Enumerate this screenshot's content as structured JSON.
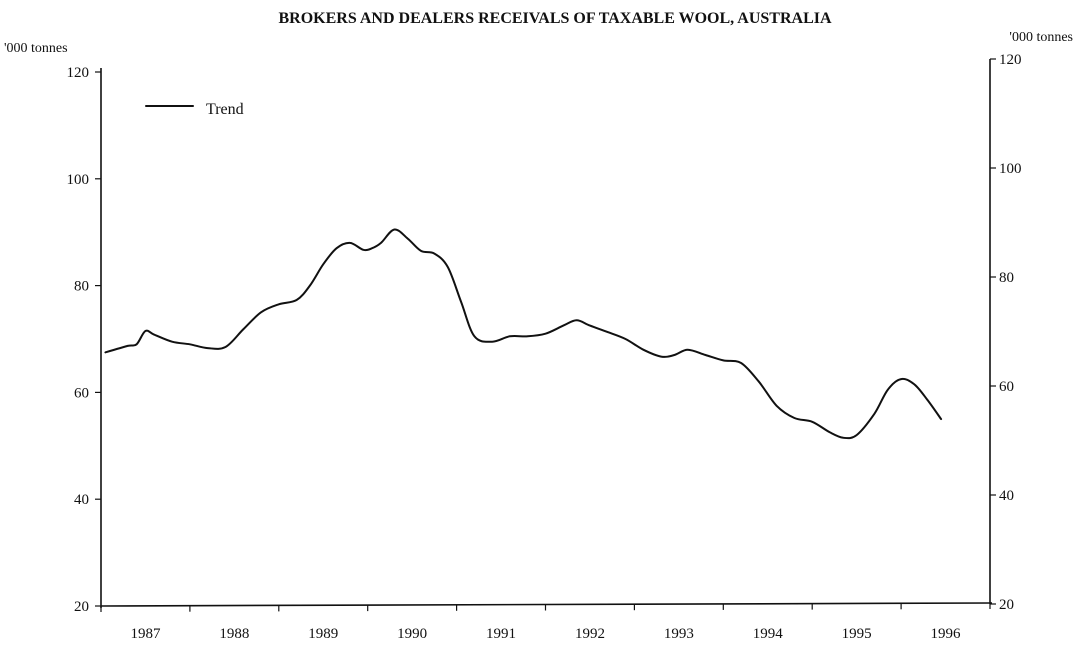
{
  "chart_data": {
    "type": "line",
    "title": "BROKERS AND DEALERS RECEIVALS OF TAXABLE WOOL, AUSTRALIA",
    "ylabel_left": "'000 tonnes",
    "ylabel_right": "'000 tonnes",
    "xlabel": "",
    "y_ticks": [
      20,
      40,
      60,
      80,
      100,
      120
    ],
    "ylim": [
      20,
      120
    ],
    "y_ticks_right": [
      20,
      40,
      60,
      80,
      100,
      120
    ],
    "x_tick_labels": [
      "1987",
      "1988",
      "1989",
      "1990",
      "1991",
      "1992",
      "1993",
      "1994",
      "1995",
      "1996"
    ],
    "xlim": [
      1986.6,
      1996.6
    ],
    "grid": false,
    "legend": {
      "placement": "top-left",
      "entries": [
        "Trend"
      ]
    },
    "series": [
      {
        "name": "Trend",
        "x": [
          1986.65,
          1986.9,
          1987.0,
          1987.1,
          1987.2,
          1987.4,
          1987.6,
          1987.8,
          1988.0,
          1988.2,
          1988.4,
          1988.6,
          1988.8,
          1988.95,
          1989.1,
          1989.25,
          1989.4,
          1989.55,
          1989.65,
          1989.75,
          1989.9,
          1990.05,
          1990.2,
          1990.35,
          1990.5,
          1990.65,
          1990.8,
          1991.0,
          1991.2,
          1991.4,
          1991.6,
          1991.8,
          1991.95,
          1992.1,
          1992.3,
          1992.5,
          1992.7,
          1992.9,
          1993.05,
          1993.2,
          1993.4,
          1993.6,
          1993.8,
          1994.0,
          1994.2,
          1994.4,
          1994.6,
          1994.8,
          1994.95,
          1995.1,
          1995.3,
          1995.45,
          1995.6,
          1995.75,
          1995.9,
          1996.05
        ],
        "values": [
          67.5,
          68.7,
          69,
          71.5,
          70.8,
          69.5,
          69,
          68.3,
          68.5,
          71.8,
          75,
          76.5,
          77.3,
          80,
          84,
          87,
          88,
          86.7,
          87,
          88,
          90.5,
          88.8,
          86.5,
          86,
          83.5,
          77,
          70.5,
          69.5,
          70.5,
          70.5,
          71,
          72.5,
          73.5,
          72.5,
          71.3,
          70,
          68,
          66.7,
          67,
          68,
          67,
          66,
          65.5,
          62,
          57.5,
          55.2,
          54.5,
          52.5,
          51.5,
          52,
          56,
          60.5,
          62.5,
          61.5,
          58.5,
          55
        ]
      }
    ]
  }
}
